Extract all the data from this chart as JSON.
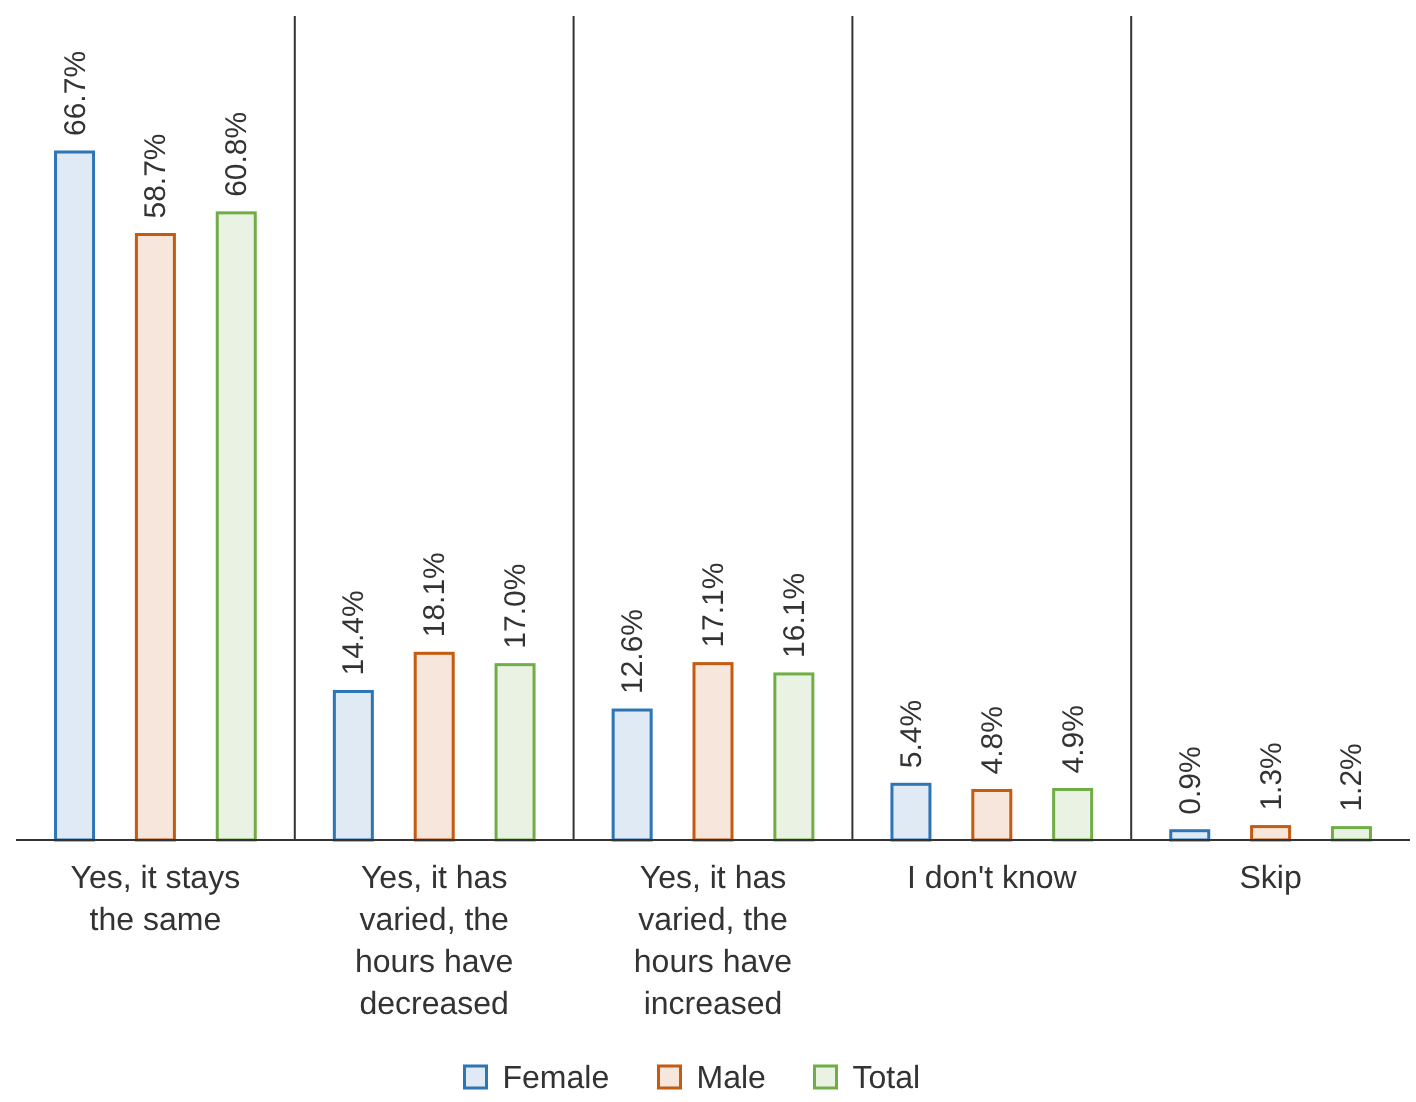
{
  "chart_data": {
    "type": "bar",
    "categories": [
      "Yes, it stays the same",
      "Yes, it has varied, the hours have decreased",
      "Yes, it has varied, the hours have increased",
      "I don't know",
      "Skip"
    ],
    "series": [
      {
        "name": "Female",
        "color": "#2e75b6",
        "values": [
          66.7,
          14.4,
          12.6,
          5.4,
          0.9
        ],
        "value_labels": [
          "66.7%",
          "14.4%",
          "12.6%",
          "5.4%",
          "0.9%"
        ]
      },
      {
        "name": "Male",
        "color": "#c55a11",
        "values": [
          58.7,
          18.1,
          17.1,
          4.8,
          1.3
        ],
        "value_labels": [
          "58.7%",
          "18.1%",
          "17.1%",
          "4.8%",
          "1.3%"
        ]
      },
      {
        "name": "Total",
        "color": "#70ad47",
        "values": [
          60.8,
          17.0,
          16.1,
          4.9,
          1.2
        ],
        "value_labels": [
          "60.8%",
          "17.0%",
          "16.1%",
          "4.9%",
          "1.2%"
        ]
      }
    ],
    "legend": "bottom"
  }
}
